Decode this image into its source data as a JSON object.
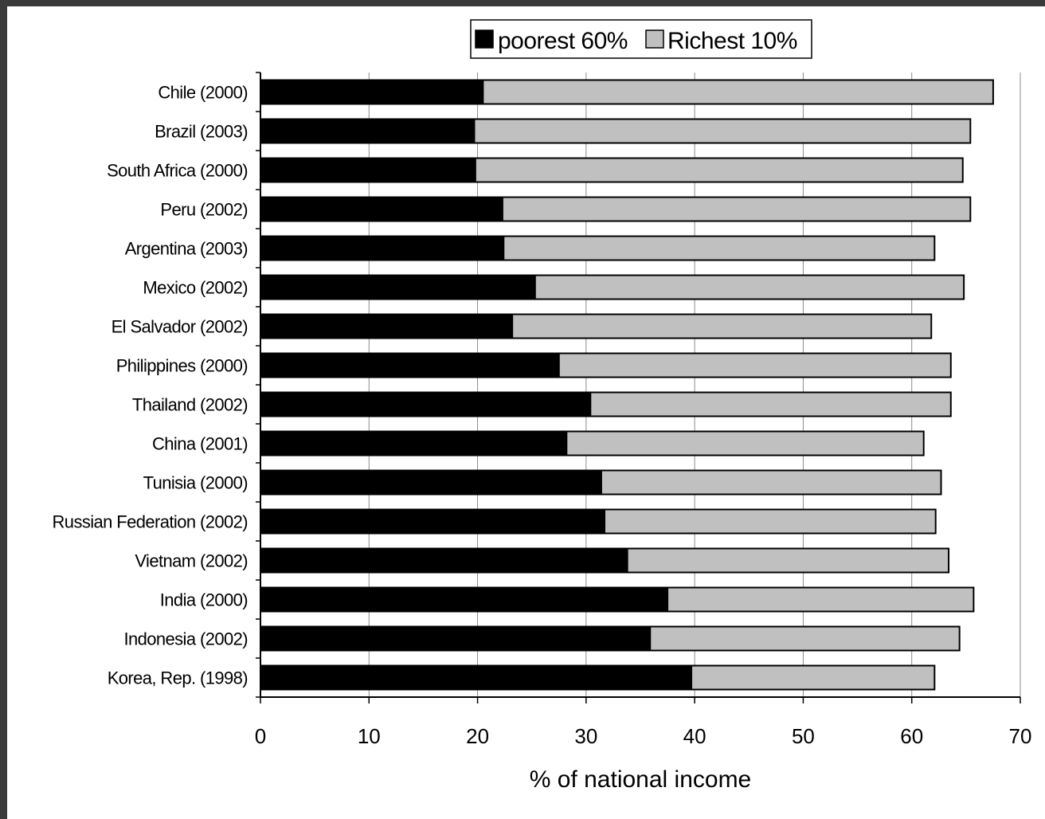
{
  "chart_data": {
    "type": "bar",
    "orientation": "horizontal",
    "stacked": true,
    "xlabel": "% of national income",
    "ylabel": "",
    "xlim": [
      0,
      70
    ],
    "xticks": [
      0,
      10,
      20,
      30,
      40,
      50,
      60,
      70
    ],
    "grid": "vertical",
    "legend_position": "top-center",
    "categories": [
      "Chile (2000)",
      "Brazil (2003)",
      "South Africa (2000)",
      "Peru (2002)",
      "Argentina (2003)",
      "Mexico (2002)",
      "El Salvador (2002)",
      "Philippines (2000)",
      "Thailand (2002)",
      "China (2001)",
      "Tunisia (2000)",
      "Russian Federation (2002)",
      "Vietnam (2002)",
      "India (2000)",
      "Indonesia (2002)",
      "Korea, Rep. (1998)"
    ],
    "series": [
      {
        "name": "poorest 60%",
        "color": "#000000",
        "values": [
          20.5,
          19.7,
          19.8,
          22.3,
          22.4,
          25.3,
          23.2,
          27.5,
          30.4,
          28.2,
          31.4,
          31.7,
          33.8,
          37.5,
          35.9,
          39.7
        ]
      },
      {
        "name": "Richest 10%",
        "color": "#c0c0c0",
        "values": [
          47.0,
          45.7,
          44.9,
          43.1,
          39.7,
          39.5,
          38.6,
          36.1,
          33.2,
          32.9,
          31.3,
          30.5,
          29.6,
          28.2,
          28.5,
          22.4
        ]
      }
    ]
  }
}
